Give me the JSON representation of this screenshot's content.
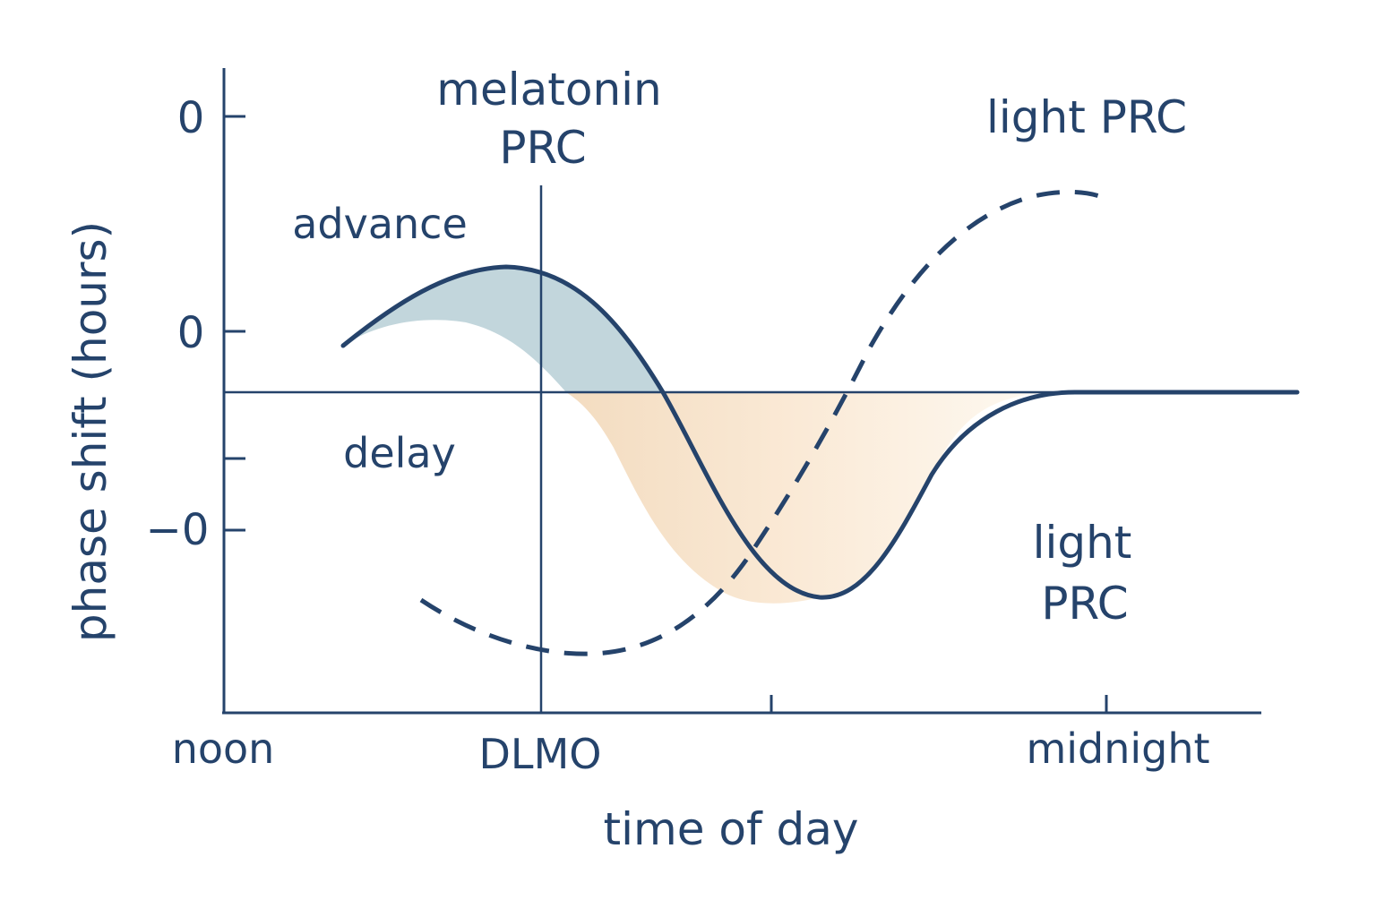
{
  "chart_data": {
    "type": "line",
    "title": "",
    "xlabel": "time of day",
    "ylabel": "phase shift (hours)",
    "x_tick_labels": [
      "noon",
      "DLMO",
      "midnight"
    ],
    "y_tick_labels": [
      "0",
      "0",
      "−0"
    ],
    "region_labels": {
      "advance": "advance",
      "delay": "delay"
    },
    "series": [
      {
        "name": "melatonin PRC",
        "style": "solid"
      },
      {
        "name": "light PRC",
        "style": "dashed"
      }
    ],
    "annotations": {
      "melatonin_line1": "melatonin",
      "melatonin_line2": "PRC",
      "light_top": "light PRC",
      "light_bottom_line1": "light",
      "light_bottom_line2": "PRC"
    },
    "grid": false,
    "legend": "none"
  },
  "colors": {
    "ink": "#25436b",
    "advance_fill": "#c2d6dc",
    "delay_fill_dark": "#f3ddc2",
    "delay_fill_light": "#fdf8ee"
  }
}
